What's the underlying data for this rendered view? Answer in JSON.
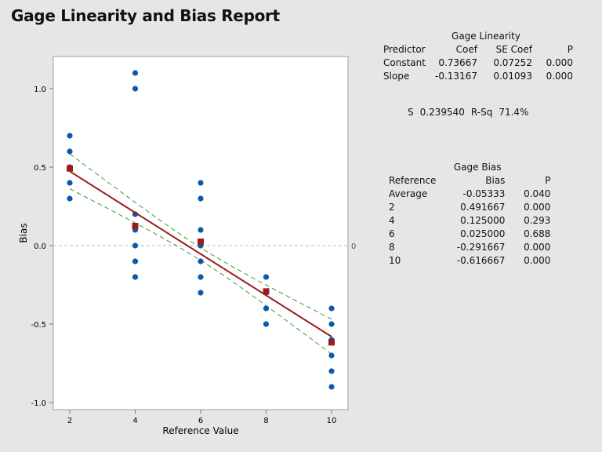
{
  "title": "Gage Linearity and Bias Report",
  "linearity": {
    "heading": "Gage Linearity",
    "columns": [
      "Predictor",
      "Coef",
      "SE Coef",
      "P"
    ],
    "rows": [
      [
        "Constant",
        "0.73667",
        "0.07252",
        "0.000"
      ],
      [
        "Slope",
        "-0.13167",
        "0.01093",
        "0.000"
      ]
    ],
    "s_label": "S",
    "s_value": "0.239540",
    "rsq_label": "R-Sq",
    "rsq_value": "71.4%"
  },
  "bias": {
    "heading": "Gage Bias",
    "columns": [
      "Reference",
      "Bias",
      "P"
    ],
    "rows": [
      [
        "Average",
        "-0.05333",
        "0.040"
      ],
      [
        "2",
        "0.491667",
        "0.000"
      ],
      [
        "4",
        "0.125000",
        "0.293"
      ],
      [
        "6",
        "0.025000",
        "0.688"
      ],
      [
        "8",
        "-0.291667",
        "0.000"
      ],
      [
        "10",
        "-0.616667",
        "0.000"
      ]
    ]
  },
  "chart_data": {
    "type": "scatter",
    "xlabel": "Reference Value",
    "ylabel": "Bias",
    "xlim": [
      1.5,
      10.5
    ],
    "ylim": [
      -1.05,
      1.2
    ],
    "xticks": [
      2,
      4,
      6,
      8,
      10
    ],
    "yticks": [
      "-1.0",
      "-0.5",
      "0.0",
      "0.5",
      "1.0"
    ],
    "reference_line": {
      "y": 0,
      "label": "0"
    },
    "points": [
      [
        2,
        0.7
      ],
      [
        2,
        0.6
      ],
      [
        2,
        0.5
      ],
      [
        2,
        0.4
      ],
      [
        2,
        0.3
      ],
      [
        4,
        1.1
      ],
      [
        4,
        1.0
      ],
      [
        4,
        0.2
      ],
      [
        4,
        0.1
      ],
      [
        4,
        0.0
      ],
      [
        4,
        -0.1
      ],
      [
        4,
        -0.2
      ],
      [
        6,
        0.4
      ],
      [
        6,
        0.3
      ],
      [
        6,
        0.1
      ],
      [
        6,
        0.0
      ],
      [
        6,
        -0.1
      ],
      [
        6,
        -0.2
      ],
      [
        6,
        -0.3
      ],
      [
        8,
        -0.2
      ],
      [
        8,
        -0.3
      ],
      [
        8,
        -0.4
      ],
      [
        8,
        -0.5
      ],
      [
        10,
        -0.4
      ],
      [
        10,
        -0.5
      ],
      [
        10,
        -0.6
      ],
      [
        10,
        -0.7
      ],
      [
        10,
        -0.8
      ],
      [
        10,
        -0.9
      ]
    ],
    "means": [
      [
        2,
        0.491667
      ],
      [
        4,
        0.125
      ],
      [
        6,
        0.025
      ],
      [
        8,
        -0.291667
      ],
      [
        10,
        -0.616667
      ]
    ],
    "fit": {
      "intercept": 0.73667,
      "slope": -0.13167
    },
    "colors": {
      "points": "#0a5aa8",
      "means": "#9b1c1c",
      "fit": "#9b1c1c",
      "ci": "#3a9a3a",
      "zero": "#bbbbbb"
    },
    "grid": false
  }
}
